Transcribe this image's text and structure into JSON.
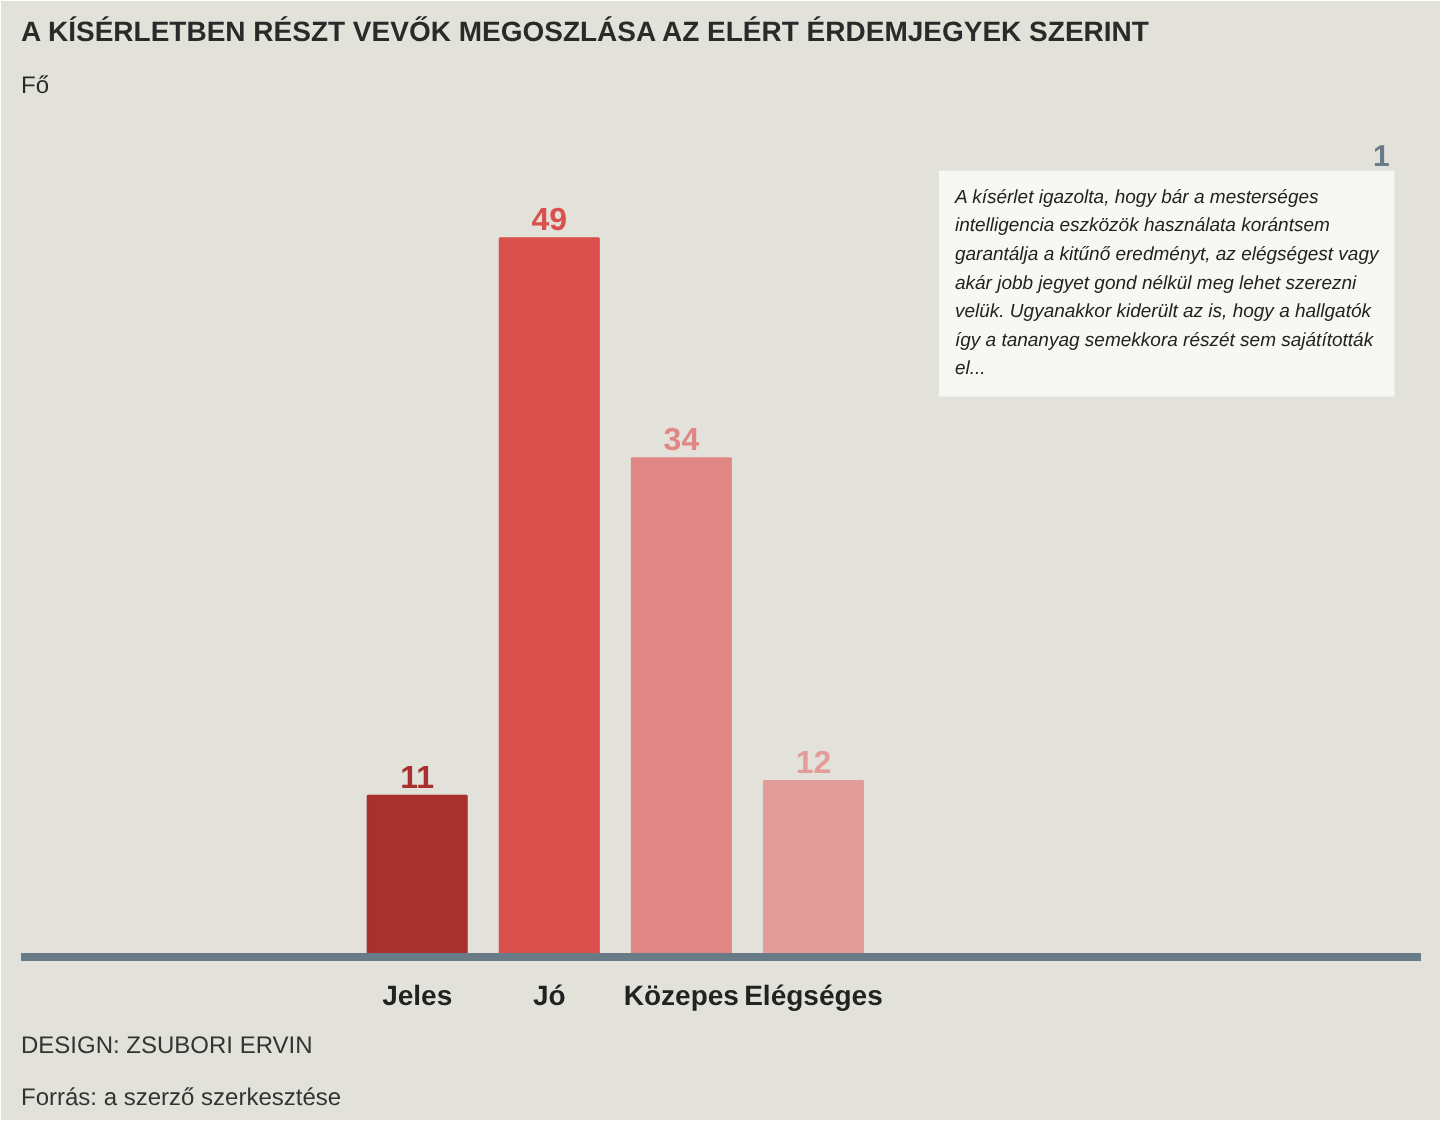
{
  "chart_data": {
    "type": "bar",
    "title": "A KÍSÉRLETBEN RÉSZT VEVŐK MEGOSZLÁSA AZ ELÉRT ÉRDEMJEGYEK SZERINT",
    "subtitle": "Fő",
    "categories": [
      "Jeles",
      "Jó",
      "Közepes",
      "Elégséges"
    ],
    "values": [
      11,
      49,
      34,
      12
    ],
    "colors": [
      "#a8302f",
      "#d9504d",
      "#e08785",
      "#e39c9a"
    ],
    "data_labels": true,
    "grid": false,
    "annotations": [
      "A kísérlet igazolta, hogy bár a mesterséges intelligencia eszközök használata korántsem garantálja a kitűnő eredményt, az elégségest vagy akár jobb jegyet gond nélkül meg lehet szerezni velük. Ugyanakkor kiderült az is, hogy a hallgatók így a tananyag semekkora részét sem sajátították el...",
      "1",
      "Forrás: a szerző szerkesztése",
      "DESIGN: ZSUBORI ERVIN"
    ]
  }
}
